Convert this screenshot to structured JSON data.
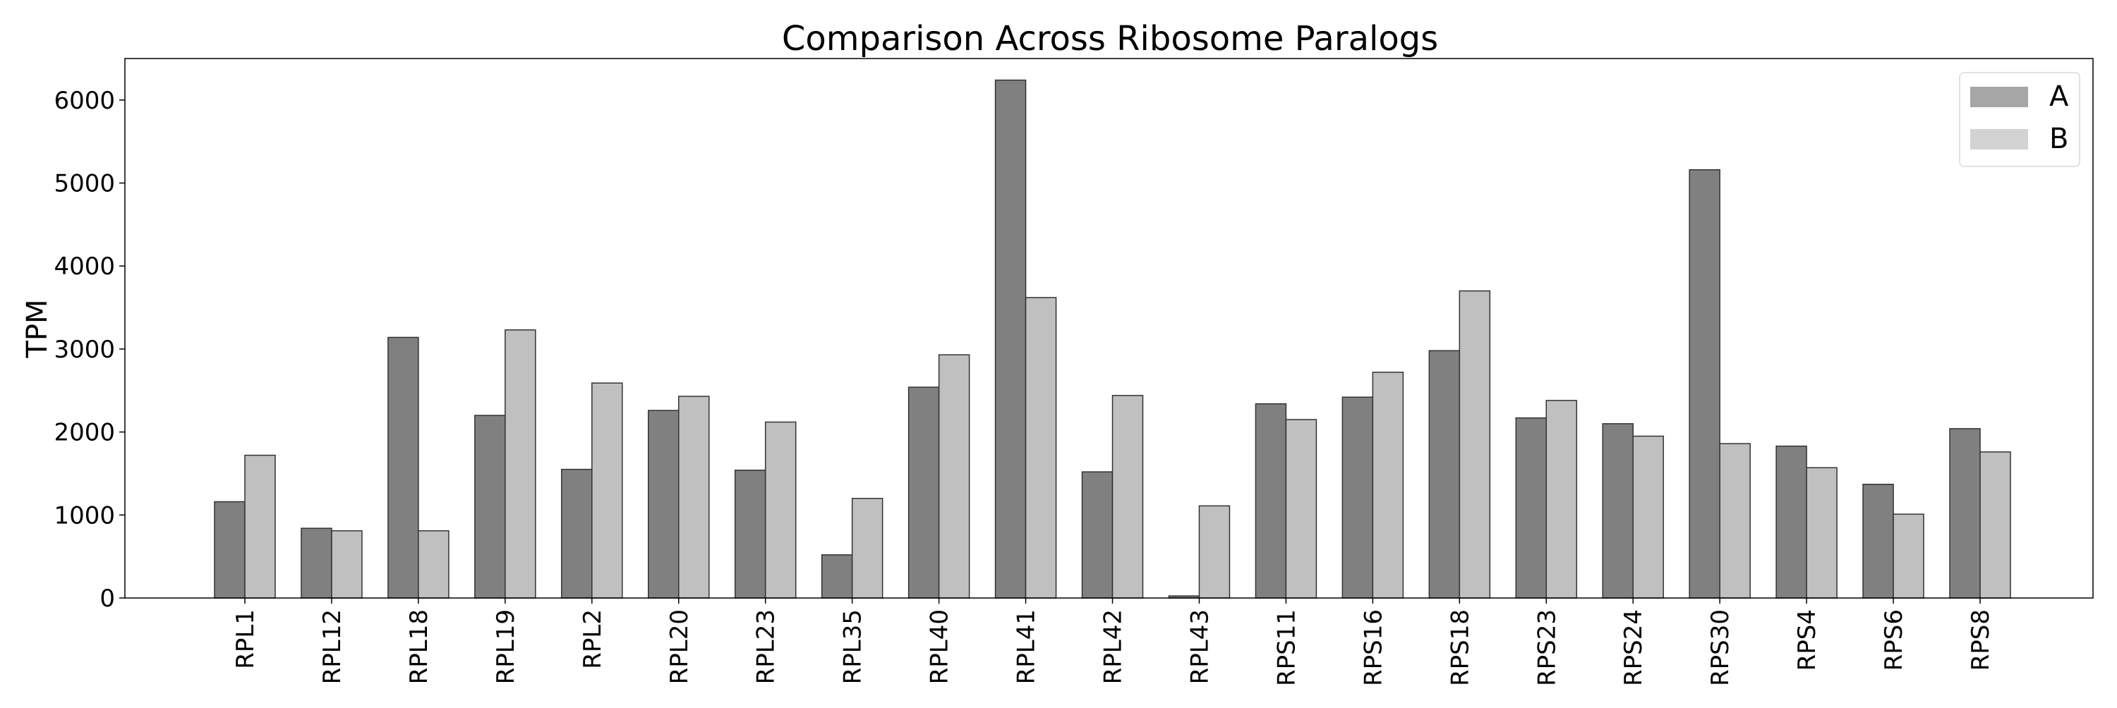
{
  "chart_data": {
    "type": "bar",
    "title": "Comparison Across Ribosome Paralogs",
    "xlabel": "",
    "ylabel": "TPM",
    "ylim": [
      0,
      6500
    ],
    "yticks": [
      0,
      1000,
      2000,
      3000,
      4000,
      5000,
      6000
    ],
    "grid": false,
    "legend_position": "top-right",
    "categories": [
      "RPL1",
      "RPL12",
      "RPL18",
      "RPL19",
      "RPL2",
      "RPL20",
      "RPL23",
      "RPL35",
      "RPL40",
      "RPL41",
      "RPL42",
      "RPL43",
      "RPS11",
      "RPS16",
      "RPS18",
      "RPS23",
      "RPS24",
      "RPS30",
      "RPS4",
      "RPS6",
      "RPS8"
    ],
    "series": [
      {
        "name": "A",
        "color": "#808080",
        "legend_color": "#a6a6a6",
        "values": [
          1160,
          840,
          3140,
          2200,
          1550,
          2260,
          1540,
          520,
          2540,
          6240,
          1520,
          25,
          2340,
          2420,
          2980,
          2170,
          2100,
          5160,
          1830,
          1370,
          2040
        ]
      },
      {
        "name": "B",
        "color": "#c0c0c0",
        "legend_color": "#d3d3d3",
        "values": [
          1720,
          810,
          810,
          3230,
          2590,
          2430,
          2120,
          1200,
          2930,
          3620,
          2440,
          1110,
          2150,
          2720,
          3700,
          2380,
          1950,
          1860,
          1570,
          1010,
          1760
        ]
      }
    ]
  }
}
